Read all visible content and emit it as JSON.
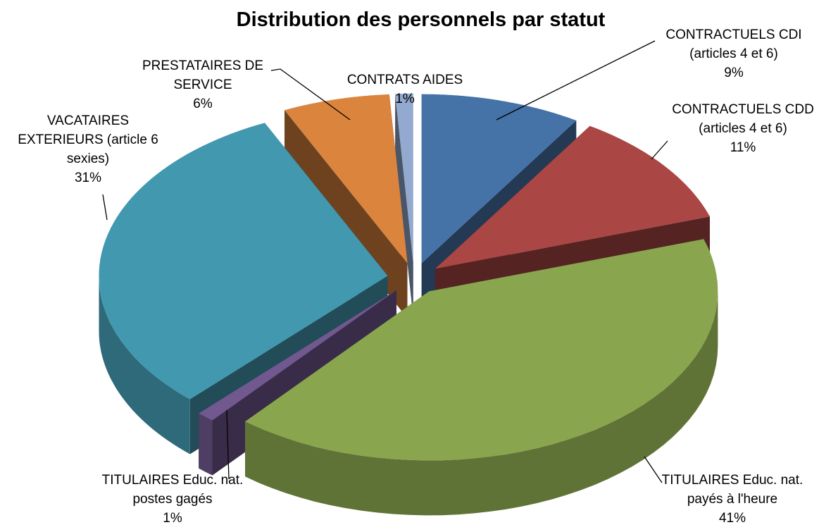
{
  "chart_data": {
    "type": "pie3d",
    "title": "Distribution des personnels par statut",
    "categories": [
      "CONTRACTUELS CDI (articles 4 et 6)",
      "CONTRACTUELS CDD (articles 4 et 6)",
      "TITULAIRES Educ. nat. payés à l'heure",
      "TITULAIRES Educ. nat. postes gagés",
      "VACATAIRES EXTERIEURS (article 6 sexies)",
      "PRESTATAIRES DE SERVICE",
      "CONTRATS AIDES"
    ],
    "values": [
      9,
      11,
      41,
      1,
      31,
      6,
      1
    ],
    "value_labels": [
      "9%",
      "11%",
      "41%",
      "1%",
      "31%",
      "6%",
      "1%"
    ],
    "colors": [
      "#4572a7",
      "#aa4643",
      "#89a54e",
      "#71588f",
      "#4198af",
      "#db843d",
      "#93a9cf"
    ]
  }
}
